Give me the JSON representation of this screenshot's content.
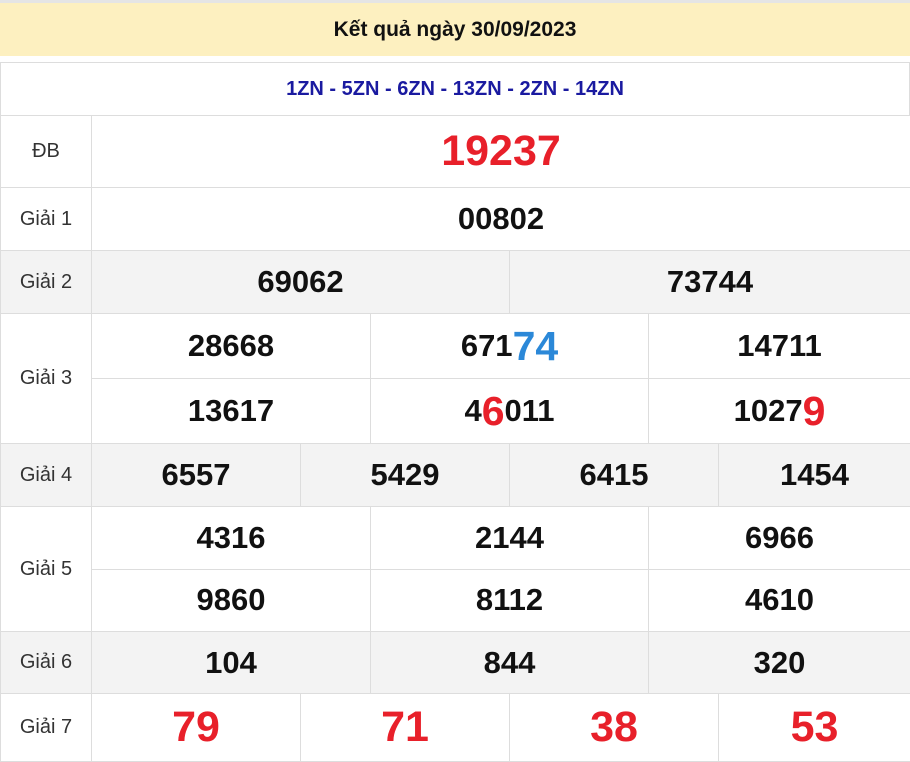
{
  "header": {
    "title": "Kết quả ngày 30/09/2023"
  },
  "codes": "1ZN - 5ZN - 6ZN - 13ZN - 2ZN - 14ZN",
  "colors": {
    "red": "#e8202a",
    "blue": "#2b88d8",
    "header_bg": "#fdf0c0",
    "codes": "#1a1aa0"
  },
  "prizes": [
    {
      "label": "ĐB",
      "cols": 1,
      "big": true,
      "rows": [
        [
          {
            "value": "19237"
          }
        ]
      ]
    },
    {
      "label": "Giải 1",
      "cols": 1,
      "rows": [
        [
          {
            "value": "00802"
          }
        ]
      ]
    },
    {
      "label": "Giải 2",
      "cols": 2,
      "gray": true,
      "rows": [
        [
          {
            "value": "69062"
          },
          {
            "value": "73744"
          }
        ]
      ]
    },
    {
      "label": "Giải 3",
      "cols": 3,
      "rows": [
        [
          {
            "value": "28668"
          },
          {
            "value": "67174",
            "hl_start": 3,
            "hl_end": 5,
            "hl_color": "#2b88d8"
          },
          {
            "value": "14711"
          }
        ],
        [
          {
            "value": "13617"
          },
          {
            "value": "46011",
            "hl_start": 1,
            "hl_end": 2,
            "hl_color": "#e8202a"
          },
          {
            "value": "10279",
            "hl_start": 4,
            "hl_end": 5,
            "hl_color": "#e8202a"
          }
        ]
      ]
    },
    {
      "label": "Giải 4",
      "cols": 4,
      "gray": true,
      "rows": [
        [
          {
            "value": "6557"
          },
          {
            "value": "5429"
          },
          {
            "value": "6415"
          },
          {
            "value": "1454"
          }
        ]
      ]
    },
    {
      "label": "Giải 5",
      "cols": 3,
      "rows": [
        [
          {
            "value": "4316"
          },
          {
            "value": "2144"
          },
          {
            "value": "6966"
          }
        ],
        [
          {
            "value": "9860"
          },
          {
            "value": "8112"
          },
          {
            "value": "4610"
          }
        ]
      ]
    },
    {
      "label": "Giải 6",
      "cols": 3,
      "gray": true,
      "rows": [
        [
          {
            "value": "104"
          },
          {
            "value": "844"
          },
          {
            "value": "320"
          }
        ]
      ]
    },
    {
      "label": "Giải 7",
      "cols": 4,
      "big": true,
      "rows": [
        [
          {
            "value": "79"
          },
          {
            "value": "71"
          },
          {
            "value": "38"
          },
          {
            "value": "53"
          }
        ]
      ]
    }
  ]
}
